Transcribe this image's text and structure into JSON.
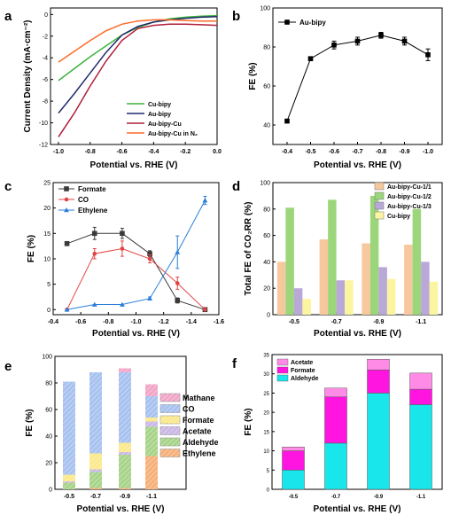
{
  "colors": {
    "cuBipy": "#3cb43c",
    "auBipy": "#1f2a6e",
    "auBipyCu": "#b01e3a",
    "auBipyCuN2": "#ff6a2a",
    "formate": "#3a3a3a",
    "co": "#e04444",
    "ethylene": "#2a7ed8",
    "cu11": "#f7c89d",
    "cu12": "#9cd67b",
    "cu13": "#b9a8d8",
    "cuBipyBar": "#fbf5a0",
    "methane": "#f2a6c8",
    "coE": "#a8c2f0",
    "formateE": "#fbe98d",
    "acetateE": "#cbb8e6",
    "aldehydeE": "#a7d489",
    "ethyleneE": "#f6b07a",
    "acetateF": "#ff8be6",
    "formateF": "#ff14e0",
    "aldehydeF": "#19e6ea"
  },
  "chart_data": [
    {
      "panel": "a",
      "type": "line",
      "xlabel": "Potential vs. RHE (V)",
      "ylabel": "Current Density (mA·cm⁻²)",
      "xlim": [
        -1.05,
        0.0
      ],
      "ylim": [
        -12,
        0.6
      ],
      "xticks": [
        "-1.0",
        "-0.8",
        "-0.6",
        "-0.4",
        "-0.2",
        "0.0"
      ],
      "xtickvals": [
        -1.0,
        -0.8,
        -0.6,
        -0.4,
        -0.2,
        0.0
      ],
      "yticks": [
        "0",
        "-2",
        "-4",
        "-6",
        "-8",
        "-10",
        "-12"
      ],
      "ytickvals": [
        0,
        -2,
        -4,
        -6,
        -8,
        -10,
        -12
      ],
      "legend_position": "lower-right",
      "series": [
        {
          "name": "Cu-bipy",
          "color": "cuBipy",
          "x": [
            -1.0,
            -0.9,
            -0.8,
            -0.7,
            -0.6,
            -0.5,
            -0.4,
            -0.3,
            -0.2,
            -0.1,
            0.0
          ],
          "y": [
            -6.1,
            -5.0,
            -3.9,
            -2.9,
            -1.9,
            -1.2,
            -0.7,
            -0.4,
            -0.25,
            -0.15,
            -0.1
          ]
        },
        {
          "name": "Au-bipy",
          "color": "auBipy",
          "x": [
            -1.0,
            -0.9,
            -0.8,
            -0.7,
            -0.6,
            -0.5,
            -0.4,
            -0.3,
            -0.2,
            -0.1,
            0.0
          ],
          "y": [
            -9.1,
            -7.3,
            -5.4,
            -3.5,
            -1.9,
            -1.1,
            -0.7,
            -0.5,
            -0.35,
            -0.25,
            -0.2
          ]
        },
        {
          "name": "Au-bipy-Cu",
          "color": "auBipyCu",
          "x": [
            -1.0,
            -0.9,
            -0.8,
            -0.7,
            -0.6,
            -0.5,
            -0.4,
            -0.3,
            -0.2,
            -0.1,
            0.0
          ],
          "y": [
            -11.3,
            -9.1,
            -6.6,
            -4.3,
            -2.4,
            -1.3,
            -1.0,
            -0.9,
            -0.9,
            -0.95,
            -1.0
          ]
        },
        {
          "name": "Au-bipy-Cu in N₂",
          "color": "auBipyCuN2",
          "x": [
            -1.0,
            -0.9,
            -0.8,
            -0.7,
            -0.6,
            -0.5,
            -0.4,
            -0.3,
            -0.2,
            -0.1,
            0.0
          ],
          "y": [
            -4.4,
            -3.4,
            -2.4,
            -1.5,
            -0.9,
            -0.6,
            -0.5,
            -0.5,
            -0.55,
            -0.6,
            -0.6
          ]
        }
      ]
    },
    {
      "panel": "b",
      "type": "line",
      "xlabel": "Potential vs. RHE (V)",
      "ylabel": "FE (%)",
      "ylim": [
        30,
        100
      ],
      "yticks": [
        "40",
        "60",
        "80",
        "100"
      ],
      "ytickvals": [
        40,
        60,
        80,
        100
      ],
      "categories": [
        "-0.4",
        "-0.5",
        "-0.6",
        "-0.7",
        "-0.8",
        "-0.9",
        "-1.0"
      ],
      "legend_position": "top-left",
      "series": [
        {
          "name": "Au-bipy",
          "values": [
            42,
            74,
            81,
            83,
            86,
            83,
            76
          ],
          "errors": [
            0,
            1,
            2,
            2,
            1.5,
            2,
            3
          ]
        }
      ]
    },
    {
      "panel": "c",
      "type": "line",
      "xlabel": "Potential vs. RHE (V)",
      "ylabel": "FE (%)",
      "xlim": [
        -0.4,
        -1.6
      ],
      "ylim": [
        -1,
        25
      ],
      "xticks": [
        "-0.4",
        "-0.6",
        "-0.8",
        "-1.0",
        "-1.2",
        "-1.4",
        "-1.6"
      ],
      "xtickvals": [
        -0.4,
        -0.6,
        -0.8,
        -1.0,
        -1.2,
        -1.4,
        -1.6
      ],
      "yticks": [
        "0",
        "5",
        "10",
        "15",
        "20",
        "25"
      ],
      "ytickvals": [
        0,
        5,
        10,
        15,
        20,
        25
      ],
      "legend_position": "top-left",
      "series": [
        {
          "name": "Formate",
          "color": "formate",
          "marker": "square",
          "x": [
            -0.5,
            -0.7,
            -0.9,
            -1.1,
            -1.3,
            -1.5
          ],
          "y": [
            13,
            15,
            15,
            11,
            1.8,
            0
          ],
          "errors": [
            0.4,
            1.2,
            1.0,
            0.6,
            0.5,
            0
          ]
        },
        {
          "name": "CO",
          "color": "co",
          "marker": "circle",
          "x": [
            -0.5,
            -0.7,
            -0.9,
            -1.1,
            -1.3,
            -1.5
          ],
          "y": [
            0,
            11,
            12,
            10,
            5.2,
            0
          ],
          "errors": [
            0,
            1.0,
            1.5,
            0.8,
            1.2,
            0
          ]
        },
        {
          "name": "Ethylene",
          "color": "ethylene",
          "marker": "triangle",
          "x": [
            -0.5,
            -0.7,
            -0.9,
            -1.1,
            -1.3,
            -1.5
          ],
          "y": [
            0,
            1,
            1,
            2.2,
            11.3,
            21.5
          ],
          "errors": [
            0,
            0,
            0,
            0.3,
            3.2,
            0.8
          ]
        }
      ]
    },
    {
      "panel": "d",
      "type": "bar",
      "xlabel": "Potential vs. RHE (V)",
      "ylabel": "Total FE of CO₂RR (%)",
      "ylim": [
        0,
        100
      ],
      "yticks": [
        "0",
        "20",
        "40",
        "60",
        "80",
        "100"
      ],
      "ytickvals": [
        0,
        20,
        40,
        60,
        80,
        100
      ],
      "categories": [
        "-0.5",
        "-0.7",
        "-0.9",
        "-1.1"
      ],
      "legend_position": "top-right",
      "series": [
        {
          "name": "Au-bipy-Cu-1/1",
          "color": "cu11",
          "values": [
            40,
            57,
            54,
            53
          ]
        },
        {
          "name": "Au-bipy-Cu-1/2",
          "color": "cu12",
          "values": [
            81,
            87,
            90,
            80
          ]
        },
        {
          "name": "Au-bipy-Cu-1/3",
          "color": "cu13",
          "values": [
            20,
            26,
            36,
            40
          ]
        },
        {
          "name": "Cu-bipy",
          "color": "cuBipyBar",
          "values": [
            12,
            26,
            27,
            25
          ]
        }
      ]
    },
    {
      "panel": "e",
      "type": "bar",
      "stacked": true,
      "xlabel": "Potential vs. RHE (V)",
      "ylabel": "FE (%)",
      "ylim": [
        0,
        100
      ],
      "yticks": [
        "0",
        "20",
        "40",
        "60",
        "80",
        "100"
      ],
      "ytickvals": [
        0,
        20,
        40,
        60,
        80,
        100
      ],
      "categories": [
        "-0.5",
        "-0.7",
        "-0.9",
        "-1.1"
      ],
      "legend_position": "right",
      "series": [
        {
          "name": "Ethylene",
          "color": "ethyleneE",
          "values": [
            0,
            1,
            1,
            25
          ]
        },
        {
          "name": "Aldehyde",
          "color": "aldehydeE",
          "values": [
            5,
            12,
            25,
            22
          ]
        },
        {
          "name": "Acetate",
          "color": "acetateE",
          "values": [
            1,
            2,
            2,
            4
          ]
        },
        {
          "name": "Formate",
          "color": "formateE",
          "values": [
            5,
            12,
            7,
            3
          ]
        },
        {
          "name": "CO",
          "color": "coE",
          "values": [
            70,
            61,
            53,
            16
          ]
        },
        {
          "name": "Mathane",
          "color": "methane",
          "values": [
            0,
            0,
            3,
            9
          ]
        }
      ]
    },
    {
      "panel": "f",
      "type": "bar",
      "stacked": true,
      "xlabel": "Potential vs. RHE (V)",
      "ylabel": "FE (%)",
      "ylim": [
        0,
        35
      ],
      "yticks": [
        "0",
        "5",
        "10",
        "15",
        "20",
        "25",
        "30",
        "35"
      ],
      "ytickvals": [
        0,
        5,
        10,
        15,
        20,
        25,
        30,
        35
      ],
      "categories": [
        "-0.5",
        "-0.7",
        "-0.9",
        "-1.1"
      ],
      "legend_position": "top-left",
      "series": [
        {
          "name": "Aldehyde",
          "color": "aldehydeF",
          "values": [
            5,
            12,
            25,
            22
          ]
        },
        {
          "name": "Formate",
          "color": "formateF",
          "values": [
            5,
            12,
            6,
            4
          ]
        },
        {
          "name": "Acetate",
          "color": "acetateF",
          "values": [
            1,
            2.3,
            2.8,
            4.2
          ]
        }
      ]
    }
  ]
}
